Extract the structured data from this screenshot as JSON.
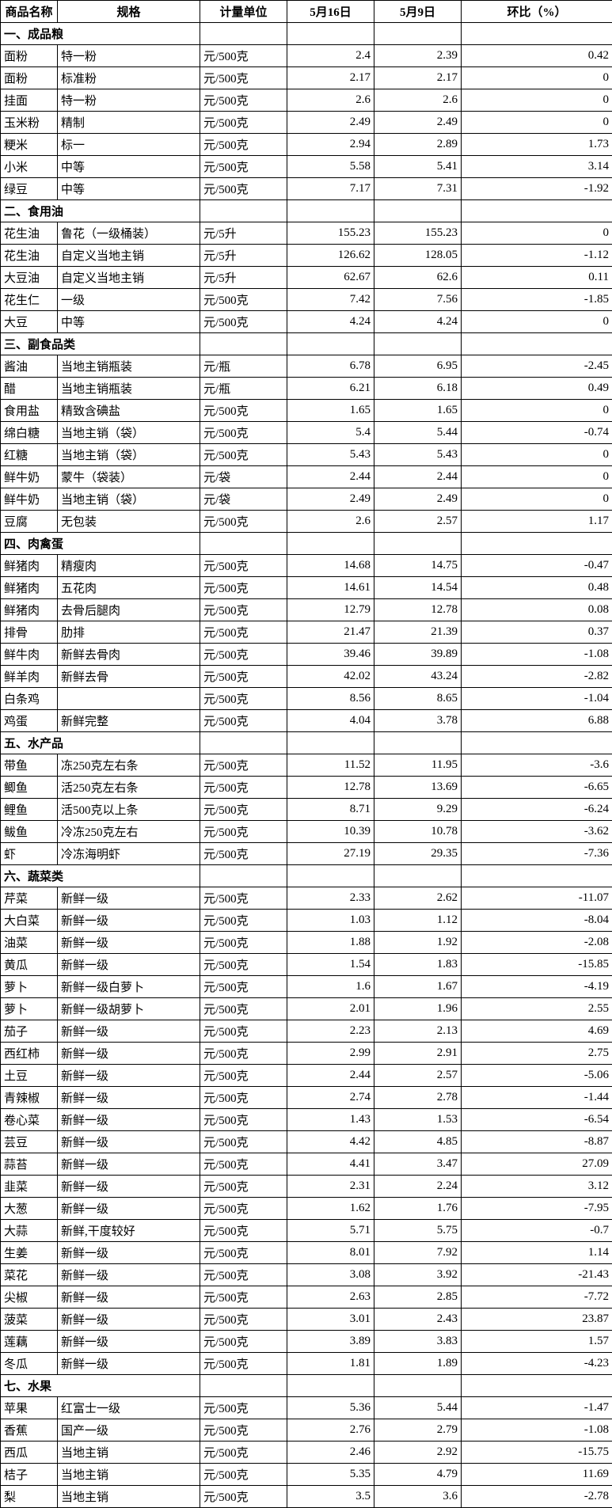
{
  "headers": [
    "商品名称",
    "规格",
    "计量单位",
    "5月16日",
    "5月9日",
    "环比（%）"
  ],
  "sections": [
    {
      "title": "一、成品粮",
      "rows": [
        [
          "面粉",
          "特一粉",
          "元/500克",
          "2.4",
          "2.39",
          "0.42"
        ],
        [
          "面粉",
          "标准粉",
          "元/500克",
          "2.17",
          "2.17",
          "0"
        ],
        [
          "挂面",
          "特一粉",
          "元/500克",
          "2.6",
          "2.6",
          "0"
        ],
        [
          "玉米粉",
          "精制",
          "元/500克",
          "2.49",
          "2.49",
          "0"
        ],
        [
          "粳米",
          "标一",
          "元/500克",
          "2.94",
          "2.89",
          "1.73"
        ],
        [
          "小米",
          "中等",
          "元/500克",
          "5.58",
          "5.41",
          "3.14"
        ],
        [
          "绿豆",
          "中等",
          "元/500克",
          "7.17",
          "7.31",
          "-1.92"
        ]
      ]
    },
    {
      "title": "二、食用油",
      "rows": [
        [
          "花生油",
          "鲁花（一级桶装）",
          "元/5升",
          "155.23",
          "155.23",
          "0"
        ],
        [
          "花生油",
          "自定义当地主销",
          "元/5升",
          "126.62",
          "128.05",
          "-1.12"
        ],
        [
          "大豆油",
          "自定义当地主销",
          "元/5升",
          "62.67",
          "62.6",
          "0.11"
        ],
        [
          "花生仁",
          "一级",
          "元/500克",
          "7.42",
          "7.56",
          "-1.85"
        ],
        [
          "大豆",
          "中等",
          "元/500克",
          "4.24",
          "4.24",
          "0"
        ]
      ]
    },
    {
      "title": "三、副食品类",
      "rows": [
        [
          "酱油",
          "当地主销瓶装",
          "元/瓶",
          "6.78",
          "6.95",
          "-2.45"
        ],
        [
          "醋",
          "当地主销瓶装",
          "元/瓶",
          "6.21",
          "6.18",
          "0.49"
        ],
        [
          "食用盐",
          "精致含碘盐",
          "元/500克",
          "1.65",
          "1.65",
          "0"
        ],
        [
          "绵白糖",
          "当地主销（袋）",
          "元/500克",
          "5.4",
          "5.44",
          "-0.74"
        ],
        [
          "红糖",
          "当地主销（袋）",
          "元/500克",
          "5.43",
          "5.43",
          "0"
        ],
        [
          "鲜牛奶",
          "蒙牛（袋装）",
          "元/袋",
          "2.44",
          "2.44",
          "0"
        ],
        [
          "鲜牛奶",
          "当地主销（袋）",
          "元/袋",
          "2.49",
          "2.49",
          "0"
        ],
        [
          "豆腐",
          "无包装",
          "元/500克",
          "2.6",
          "2.57",
          "1.17"
        ]
      ]
    },
    {
      "title": "四、肉禽蛋",
      "rows": [
        [
          "鲜猪肉",
          "精瘦肉",
          "元/500克",
          "14.68",
          "14.75",
          "-0.47"
        ],
        [
          "鲜猪肉",
          "五花肉",
          "元/500克",
          "14.61",
          "14.54",
          "0.48"
        ],
        [
          "鲜猪肉",
          "去骨后腿肉",
          "元/500克",
          "12.79",
          "12.78",
          "0.08"
        ],
        [
          "排骨",
          "肋排",
          "元/500克",
          "21.47",
          "21.39",
          "0.37"
        ],
        [
          "鲜牛肉",
          "新鲜去骨肉",
          "元/500克",
          "39.46",
          "39.89",
          "-1.08"
        ],
        [
          "鲜羊肉",
          "新鲜去骨",
          "元/500克",
          "42.02",
          "43.24",
          "-2.82"
        ],
        [
          "白条鸡",
          "",
          "元/500克",
          "8.56",
          "8.65",
          "-1.04"
        ],
        [
          "鸡蛋",
          "新鲜完整",
          "元/500克",
          "4.04",
          "3.78",
          "6.88"
        ]
      ]
    },
    {
      "title": "五、水产品",
      "rows": [
        [
          "带鱼",
          "冻250克左右条",
          "元/500克",
          "11.52",
          "11.95",
          "-3.6"
        ],
        [
          "鲫鱼",
          "活250克左右条",
          "元/500克",
          "12.78",
          "13.69",
          "-6.65"
        ],
        [
          "鲤鱼",
          "活500克以上条",
          "元/500克",
          "8.71",
          "9.29",
          "-6.24"
        ],
        [
          "鲅鱼",
          "冷冻250克左右",
          "元/500克",
          "10.39",
          "10.78",
          "-3.62"
        ],
        [
          "虾",
          "冷冻海明虾",
          "元/500克",
          "27.19",
          "29.35",
          "-7.36"
        ]
      ]
    },
    {
      "title": "六、蔬菜类",
      "rows": [
        [
          "芹菜",
          "新鲜一级",
          "元/500克",
          "2.33",
          "2.62",
          "-11.07"
        ],
        [
          "大白菜",
          "新鲜一级",
          "元/500克",
          "1.03",
          "1.12",
          "-8.04"
        ],
        [
          "油菜",
          "新鲜一级",
          "元/500克",
          "1.88",
          "1.92",
          "-2.08"
        ],
        [
          "黄瓜",
          "新鲜一级",
          "元/500克",
          "1.54",
          "1.83",
          "-15.85"
        ],
        [
          "萝卜",
          "新鲜一级白萝卜",
          "元/500克",
          "1.6",
          "1.67",
          "-4.19"
        ],
        [
          "萝卜",
          "新鲜一级胡萝卜",
          "元/500克",
          "2.01",
          "1.96",
          "2.55"
        ],
        [
          "茄子",
          "新鲜一级",
          "元/500克",
          "2.23",
          "2.13",
          "4.69"
        ],
        [
          "西红柿",
          "新鲜一级",
          "元/500克",
          "2.99",
          "2.91",
          "2.75"
        ],
        [
          "土豆",
          "新鲜一级",
          "元/500克",
          "2.44",
          "2.57",
          "-5.06"
        ],
        [
          "青辣椒",
          "新鲜一级",
          "元/500克",
          "2.74",
          "2.78",
          "-1.44"
        ],
        [
          "卷心菜",
          "新鲜一级",
          "元/500克",
          "1.43",
          "1.53",
          "-6.54"
        ],
        [
          "芸豆",
          "新鲜一级",
          "元/500克",
          "4.42",
          "4.85",
          "-8.87"
        ],
        [
          "蒜苔",
          "新鲜一级",
          "元/500克",
          "4.41",
          "3.47",
          "27.09"
        ],
        [
          "韭菜",
          "新鲜一级",
          "元/500克",
          "2.31",
          "2.24",
          "3.12"
        ],
        [
          "大葱",
          "新鲜一级",
          "元/500克",
          "1.62",
          "1.76",
          "-7.95"
        ],
        [
          "大蒜",
          "新鲜,干度较好",
          "元/500克",
          "5.71",
          "5.75",
          "-0.7"
        ],
        [
          "生姜",
          "新鲜一级",
          "元/500克",
          "8.01",
          "7.92",
          "1.14"
        ],
        [
          "菜花",
          "新鲜一级",
          "元/500克",
          "3.08",
          "3.92",
          "-21.43"
        ],
        [
          "尖椒",
          "新鲜一级",
          "元/500克",
          "2.63",
          "2.85",
          "-7.72"
        ],
        [
          "菠菜",
          "新鲜一级",
          "元/500克",
          "3.01",
          "2.43",
          "23.87"
        ],
        [
          "莲藕",
          "新鲜一级",
          "元/500克",
          "3.89",
          "3.83",
          "1.57"
        ],
        [
          "冬瓜",
          "新鲜一级",
          "元/500克",
          "1.81",
          "1.89",
          "-4.23"
        ]
      ]
    },
    {
      "title": "七、水果",
      "rows": [
        [
          "苹果",
          "红富士一级",
          "元/500克",
          "5.36",
          "5.44",
          "-1.47"
        ],
        [
          "香蕉",
          "国产一级",
          "元/500克",
          "2.76",
          "2.79",
          "-1.08"
        ],
        [
          "西瓜",
          "当地主销",
          "元/500克",
          "2.46",
          "2.92",
          "-15.75"
        ],
        [
          "桔子",
          "当地主销",
          "元/500克",
          "5.35",
          "4.79",
          "11.69"
        ],
        [
          "梨",
          "当地主销",
          "元/500克",
          "3.5",
          "3.6",
          "-2.78"
        ]
      ]
    }
  ]
}
